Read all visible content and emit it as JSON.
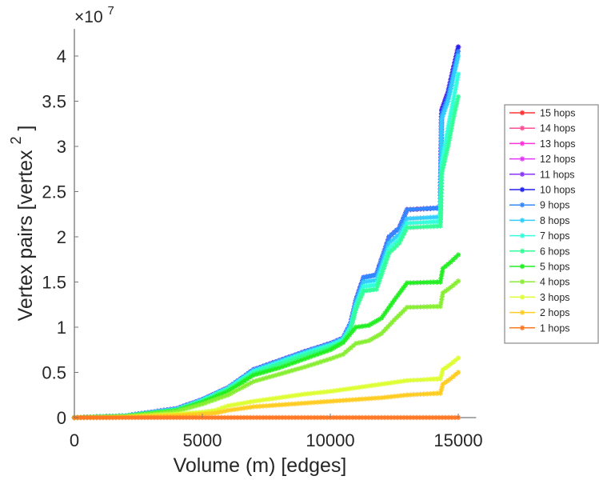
{
  "chart_data": {
    "type": "line",
    "title": "",
    "xlabel": "Volume (m) [edges]",
    "ylabel": "Vertex pairs [vertex",
    "ylabel_superscript": "2",
    "ylabel_suffix": "]",
    "y_exponent_label": "×10",
    "y_exponent": "7",
    "xlim": [
      0,
      15700
    ],
    "ylim": [
      0,
      43000000
    ],
    "xticks": [
      0,
      5000,
      10000,
      15000
    ],
    "xtick_labels": [
      "0",
      "5000",
      "10000",
      "15000"
    ],
    "yticks": [
      0,
      5000000,
      10000000,
      15000000,
      20000000,
      25000000,
      30000000,
      35000000,
      40000000
    ],
    "ytick_labels": [
      "0",
      "0.5",
      "1",
      "1.5",
      "2",
      "2.5",
      "3",
      "3.5",
      "4"
    ],
    "grid": false,
    "legend_position": "right",
    "marker": "asterisk",
    "series": [
      {
        "name": "15 hops",
        "color": "#ff3333",
        "x": [
          0,
          2000,
          4000,
          5000,
          6000,
          7000,
          8000,
          9000,
          10000,
          10500,
          10800,
          11000,
          11300,
          11800,
          12000,
          12300,
          12700,
          13000,
          14300,
          14350,
          14600,
          14800,
          15000
        ],
        "values": [
          0,
          200000,
          1000000,
          2000000,
          3300000,
          5300000,
          6300000,
          7300000,
          8200000,
          8800000,
          10500000,
          13000000,
          15500000,
          15800000,
          17500000,
          20000000,
          21000000,
          23000000,
          23200000,
          34000000,
          36000000,
          38500000,
          41000000
        ]
      },
      {
        "name": "14 hops",
        "color": "#ff4d94",
        "x": [
          0,
          2000,
          4000,
          5000,
          6000,
          7000,
          8000,
          9000,
          10000,
          10500,
          10800,
          11000,
          11300,
          11800,
          12000,
          12300,
          12700,
          13000,
          14300,
          14350,
          14600,
          14800,
          15000
        ],
        "values": [
          0,
          200000,
          1000000,
          2000000,
          3300000,
          5300000,
          6300000,
          7300000,
          8200000,
          8800000,
          10500000,
          13000000,
          15500000,
          15800000,
          17500000,
          20000000,
          21000000,
          23000000,
          23200000,
          34000000,
          36000000,
          38500000,
          41000000
        ]
      },
      {
        "name": "13 hops",
        "color": "#ff33dd",
        "x": [
          0,
          2000,
          4000,
          5000,
          6000,
          7000,
          8000,
          9000,
          10000,
          10500,
          10800,
          11000,
          11300,
          11800,
          12000,
          12300,
          12700,
          13000,
          14300,
          14350,
          14600,
          14800,
          15000
        ],
        "values": [
          0,
          200000,
          1000000,
          2000000,
          3300000,
          5300000,
          6300000,
          7300000,
          8200000,
          8800000,
          10500000,
          13000000,
          15500000,
          15800000,
          17500000,
          20000000,
          21000000,
          23000000,
          23200000,
          34000000,
          36000000,
          38500000,
          41000000
        ]
      },
      {
        "name": "12 hops",
        "color": "#e633ff",
        "x": [
          0,
          2000,
          4000,
          5000,
          6000,
          7000,
          8000,
          9000,
          10000,
          10500,
          10800,
          11000,
          11300,
          11800,
          12000,
          12300,
          12700,
          13000,
          14300,
          14350,
          14600,
          14800,
          15000
        ],
        "values": [
          0,
          200000,
          1000000,
          2000000,
          3300000,
          5300000,
          6300000,
          7300000,
          8200000,
          8800000,
          10500000,
          13000000,
          15500000,
          15800000,
          17500000,
          20000000,
          21000000,
          23000000,
          23200000,
          34000000,
          36000000,
          38500000,
          41000000
        ]
      },
      {
        "name": "11 hops",
        "color": "#8a33ff",
        "x": [
          0,
          2000,
          4000,
          5000,
          6000,
          7000,
          8000,
          9000,
          10000,
          10500,
          10800,
          11000,
          11300,
          11800,
          12000,
          12300,
          12700,
          13000,
          14300,
          14350,
          14600,
          14800,
          15000
        ],
        "values": [
          0,
          200000,
          1000000,
          2000000,
          3300000,
          5300000,
          6300000,
          7300000,
          8200000,
          8800000,
          10500000,
          13000000,
          15500000,
          15800000,
          17500000,
          20000000,
          21000000,
          23000000,
          23200000,
          34000000,
          36000000,
          38500000,
          41000000
        ]
      },
      {
        "name": "10 hops",
        "color": "#2222ee",
        "x": [
          0,
          2000,
          4000,
          5000,
          6000,
          7000,
          8000,
          9000,
          10000,
          10500,
          10800,
          11000,
          11300,
          11800,
          12000,
          12300,
          12700,
          13000,
          14300,
          14350,
          14600,
          14800,
          15000
        ],
        "values": [
          0,
          200000,
          1000000,
          2000000,
          3300000,
          5300000,
          6300000,
          7300000,
          8200000,
          8800000,
          10500000,
          13000000,
          15500000,
          15800000,
          17500000,
          20000000,
          21000000,
          23000000,
          23200000,
          34000000,
          36000000,
          38500000,
          41000000
        ]
      },
      {
        "name": "9 hops",
        "color": "#3388ff",
        "x": [
          0,
          2000,
          4000,
          5000,
          6000,
          7000,
          8000,
          9000,
          10000,
          10500,
          10800,
          11000,
          11300,
          11800,
          12000,
          12300,
          12700,
          13000,
          14300,
          14350,
          14600,
          14800,
          15000
        ],
        "values": [
          0,
          200000,
          1000000,
          2000000,
          3300000,
          5300000,
          6300000,
          7300000,
          8200000,
          8800000,
          10500000,
          13000000,
          15500000,
          15800000,
          17500000,
          20000000,
          21000000,
          23000000,
          23200000,
          33500000,
          35500000,
          38000000,
          40500000
        ]
      },
      {
        "name": "8 hops",
        "color": "#33ccff",
        "x": [
          0,
          2000,
          4000,
          5000,
          6000,
          7000,
          8000,
          9000,
          10000,
          10500,
          10800,
          11000,
          11300,
          11800,
          12000,
          12300,
          12700,
          13000,
          14300,
          14350,
          14600,
          14800,
          15000
        ],
        "values": [
          0,
          200000,
          950000,
          1950000,
          3250000,
          5200000,
          6200000,
          7200000,
          8100000,
          8700000,
          10200000,
          12600000,
          15000000,
          15200000,
          16800000,
          19300000,
          20300000,
          22000000,
          22200000,
          33000000,
          35000000,
          37500000,
          40000000
        ]
      },
      {
        "name": "7 hops",
        "color": "#33ffdd",
        "x": [
          0,
          2000,
          4000,
          5000,
          6000,
          7000,
          8000,
          9000,
          10000,
          10500,
          10800,
          11000,
          11300,
          11800,
          12000,
          12300,
          12700,
          13000,
          14300,
          14350,
          14600,
          14800,
          15000
        ],
        "values": [
          0,
          200000,
          900000,
          1900000,
          3200000,
          5100000,
          6100000,
          7100000,
          8000000,
          8600000,
          10000000,
          12300000,
          14500000,
          14700000,
          16300000,
          18700000,
          19800000,
          21500000,
          21700000,
          28000000,
          32000000,
          35000000,
          38000000
        ]
      },
      {
        "name": "6 hops",
        "color": "#33ff99",
        "x": [
          0,
          2000,
          4000,
          5000,
          6000,
          7000,
          8000,
          9000,
          10000,
          10500,
          10800,
          11000,
          11300,
          11800,
          12000,
          12300,
          12700,
          13000,
          14300,
          14350,
          14600,
          14800,
          15000
        ],
        "values": [
          0,
          180000,
          850000,
          1800000,
          3100000,
          4900000,
          5900000,
          6900000,
          7800000,
          8400000,
          9800000,
          12000000,
          14000000,
          14200000,
          15800000,
          18200000,
          19300000,
          21000000,
          21200000,
          27000000,
          30000000,
          33000000,
          35500000
        ]
      },
      {
        "name": "5 hops",
        "color": "#22ee22",
        "x": [
          0,
          2000,
          4000,
          5000,
          6000,
          7000,
          8000,
          9000,
          10000,
          10500,
          11000,
          11500,
          12000,
          12500,
          13000,
          14300,
          14400,
          14700,
          15000
        ],
        "values": [
          0,
          150000,
          800000,
          1700000,
          2900000,
          4700000,
          5500000,
          6500000,
          7500000,
          8300000,
          10000000,
          10200000,
          11000000,
          13000000,
          14900000,
          15000000,
          16500000,
          17200000,
          18000000
        ]
      },
      {
        "name": "4 hops",
        "color": "#88ee33",
        "x": [
          0,
          2000,
          4000,
          5000,
          6000,
          7000,
          8000,
          9000,
          10000,
          10500,
          11000,
          11500,
          12000,
          12500,
          13000,
          14300,
          14400,
          14700,
          15000
        ],
        "values": [
          0,
          120000,
          700000,
          1500000,
          2500000,
          4000000,
          4800000,
          5600000,
          6500000,
          7000000,
          8200000,
          8500000,
          9300000,
          10800000,
          12200000,
          12300000,
          13800000,
          14400000,
          15100000
        ]
      },
      {
        "name": "3 hops",
        "color": "#ddff33",
        "x": [
          0,
          2000,
          4000,
          5000,
          5500,
          6000,
          7000,
          8000,
          9000,
          10000,
          11000,
          12000,
          13000,
          14300,
          14400,
          14700,
          15000
        ],
        "values": [
          0,
          80000,
          400000,
          600000,
          800000,
          1300000,
          1800000,
          2200000,
          2600000,
          2900000,
          3300000,
          3700000,
          4100000,
          4300000,
          5300000,
          5900000,
          6600000
        ]
      },
      {
        "name": "2 hops",
        "color": "#ffcc22",
        "x": [
          0,
          2000,
          4000,
          5000,
          5500,
          6000,
          7000,
          8000,
          9000,
          10000,
          11000,
          12000,
          13000,
          14300,
          14400,
          14700,
          15000
        ],
        "values": [
          0,
          50000,
          250000,
          400000,
          500000,
          800000,
          1200000,
          1400000,
          1600000,
          1800000,
          2000000,
          2200000,
          2500000,
          2700000,
          3700000,
          4300000,
          5000000
        ]
      },
      {
        "name": "1 hops",
        "color": "#ff7722",
        "x": [
          0,
          3000,
          6000,
          9000,
          12000,
          15000
        ],
        "values": [
          0,
          2000,
          4000,
          6000,
          8000,
          10000
        ]
      }
    ]
  }
}
